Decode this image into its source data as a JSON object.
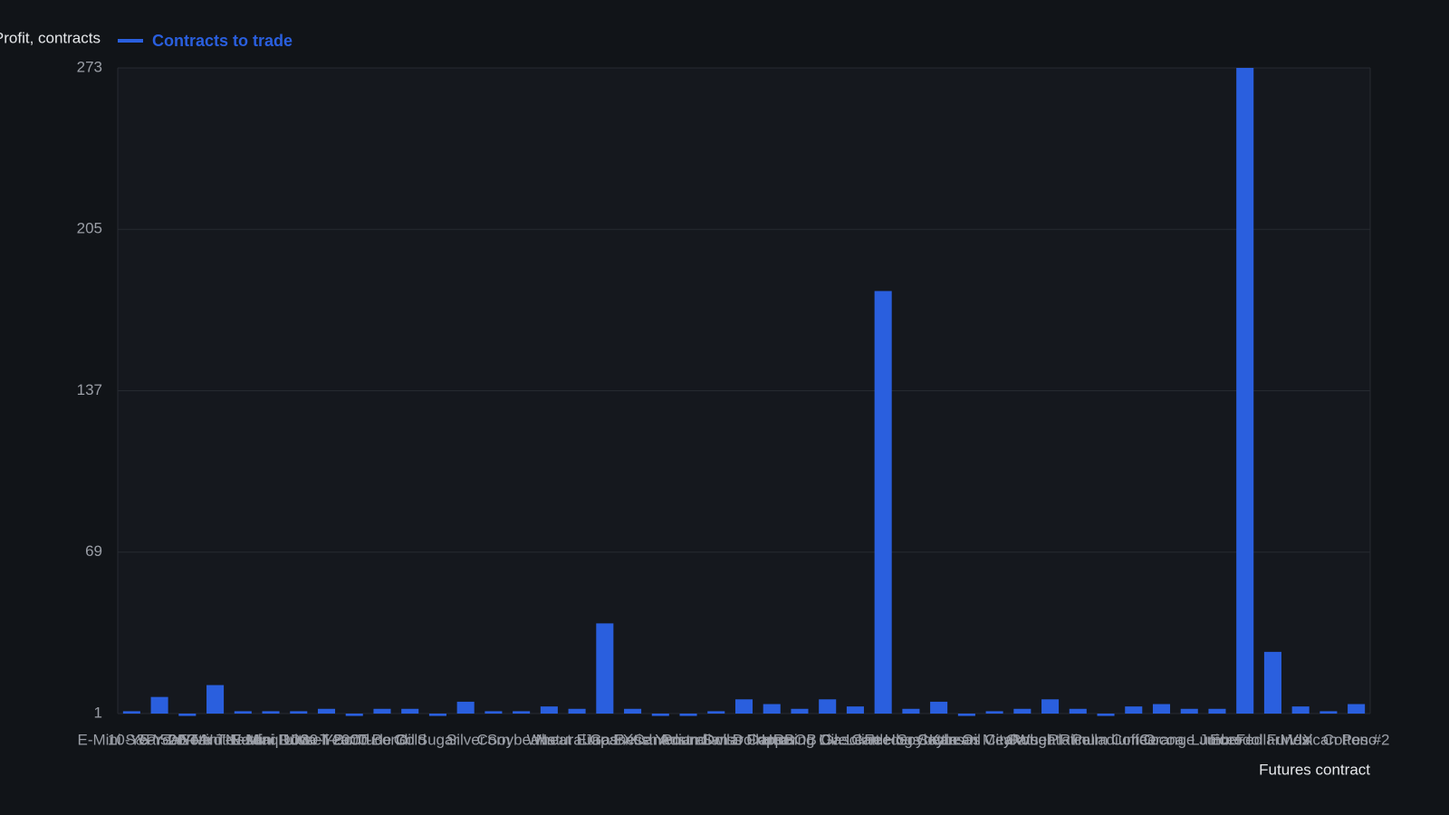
{
  "chart_data": {
    "type": "bar",
    "y_label": "Profit, contracts",
    "x_label": "Futures contract",
    "categories": [
      "E-Mini S&P 500",
      "10-Year T-Note",
      "5-Year T-Note",
      "2-Year T-Note",
      "E-Mini Nasdaq 100",
      "E-Mini Dow",
      "E-Mini Russell 2000",
      "Ultra T-Bond",
      "30-Year T-Bond",
      "Crude Oil",
      "Gold",
      "Sugar",
      "Silver",
      "Corn",
      "Soybeans",
      "Wheat",
      "Natural Gas",
      "Euro FX",
      "Japanese Yen",
      "British Pound",
      "Canadian Dollar",
      "Australian Dollar",
      "Swiss Franc",
      "Copper",
      "Heating Oil",
      "RBOB Gasoline",
      "Live Cattle",
      "Lean Hogs",
      "Feeder Cattle",
      "Soybean Oil",
      "Soybean Meal",
      "Kansas City Wheat",
      "Oats",
      "Rough Rice",
      "Platinum",
      "Palladium",
      "Coffee",
      "Cocoa",
      "Orange Juice",
      "Lumber",
      "Eurodollar",
      "Fed Funds",
      "VIX",
      "Mexican Peso",
      "Cotton #2"
    ],
    "series": [
      {
        "name": "Contracts to trade",
        "color": "#2a5fde",
        "values": [
          2,
          8,
          0,
          13,
          2,
          2,
          2,
          3,
          0,
          3,
          3,
          0,
          6,
          2,
          2,
          4,
          3,
          39,
          3,
          0,
          0,
          2,
          7,
          5,
          3,
          7,
          4,
          179,
          3,
          6,
          0,
          2,
          3,
          7,
          3,
          0,
          4,
          5,
          3,
          3,
          273,
          27,
          4,
          2,
          5
        ]
      }
    ],
    "ylim": [
      1,
      273
    ],
    "yticks": [
      1,
      69,
      137,
      205,
      273
    ],
    "grid": true
  }
}
